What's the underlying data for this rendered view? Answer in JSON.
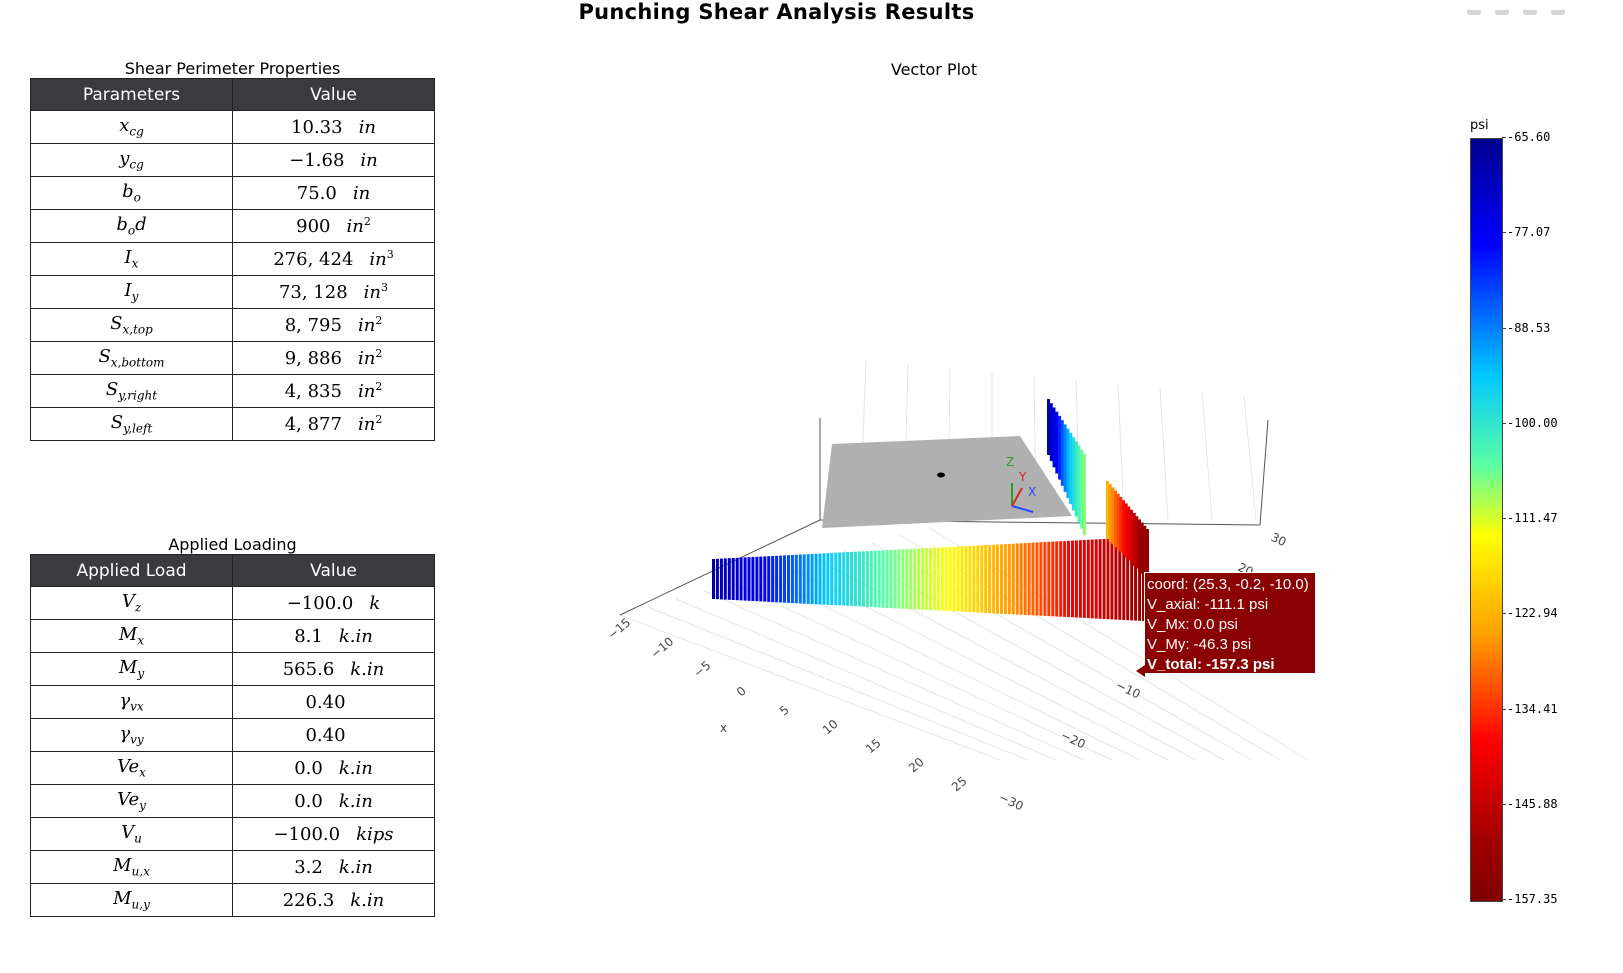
{
  "title": "Punching Shear Analysis Results",
  "shear_table": {
    "caption": "Shear Perimeter Properties",
    "headers": [
      "Parameters",
      "Value"
    ],
    "rows": [
      {
        "param": "x",
        "sub": "cg",
        "sup": "",
        "value": "10.33",
        "unit": "in",
        "unit_sup": ""
      },
      {
        "param": "y",
        "sub": "cg",
        "sup": "",
        "value": "−1.68",
        "unit": "in",
        "unit_sup": ""
      },
      {
        "param": "b",
        "sub": "o",
        "sup": "",
        "value": "75.0",
        "unit": "in",
        "unit_sup": ""
      },
      {
        "param": "b",
        "sub": "o",
        "sup": "d",
        "value": "900",
        "unit": "in",
        "unit_sup": "2"
      },
      {
        "param": "I",
        "sub": "x",
        "sup": "",
        "value": "276, 424",
        "unit": "in",
        "unit_sup": "3"
      },
      {
        "param": "I",
        "sub": "y",
        "sup": "",
        "value": "73, 128",
        "unit": "in",
        "unit_sup": "3"
      },
      {
        "param": "S",
        "sub": "x,top",
        "sup": "",
        "value": "8, 795",
        "unit": "in",
        "unit_sup": "2"
      },
      {
        "param": "S",
        "sub": "x,bottom",
        "sup": "",
        "value": "9, 886",
        "unit": "in",
        "unit_sup": "2"
      },
      {
        "param": "S",
        "sub": "y,right",
        "sup": "",
        "value": "4, 835",
        "unit": "in",
        "unit_sup": "2"
      },
      {
        "param": "S",
        "sub": "y,left",
        "sup": "",
        "value": "4, 877",
        "unit": "in",
        "unit_sup": "2"
      }
    ]
  },
  "load_table": {
    "caption": "Applied Loading",
    "headers": [
      "Applied Load",
      "Value"
    ],
    "rows": [
      {
        "param": "V",
        "sub": "z",
        "value": "−100.0",
        "unit": "k"
      },
      {
        "param": "M",
        "sub": "x",
        "value": "8.1",
        "unit": "k.in"
      },
      {
        "param": "M",
        "sub": "y",
        "value": "565.6",
        "unit": "k.in"
      },
      {
        "param": "γ",
        "sub": "vx",
        "value": "0.40",
        "unit": ""
      },
      {
        "param": "γ",
        "sub": "vy",
        "value": "0.40",
        "unit": ""
      },
      {
        "param": "Ve",
        "sub": "x",
        "value": "0.0",
        "unit": "k.in"
      },
      {
        "param": "Ve",
        "sub": "y",
        "value": "0.0",
        "unit": "k.in"
      },
      {
        "param": "V",
        "sub": "u",
        "value": "−100.0",
        "unit": "kips"
      },
      {
        "param": "M",
        "sub": "u,x",
        "value": "3.2",
        "unit": "k.in"
      },
      {
        "param": "M",
        "sub": "u,y",
        "value": "226.3",
        "unit": "k.in"
      }
    ]
  },
  "plot": {
    "title": "Vector Plot",
    "x_axis_label": "x",
    "x_ticks": [
      "−15",
      "−10",
      "−5",
      "0",
      "5",
      "10",
      "15",
      "20",
      "25"
    ],
    "y_ticks": [
      "30",
      "20",
      "−10",
      "−20",
      "−30"
    ],
    "triad": {
      "z": "Z",
      "y": "Y",
      "x": "X"
    },
    "colorbar": {
      "title": "psi",
      "ticks": [
        "-65.60",
        "-77.07",
        "-88.53",
        "-100.00",
        "-111.47",
        "-122.94",
        "-134.41",
        "-145.88",
        "-157.35"
      ],
      "colors": [
        "#00008f",
        "#0000ff",
        "#00c8ff",
        "#5dffa2",
        "#ffff00",
        "#ffa000",
        "#ff0000",
        "#a00000",
        "#800000"
      ]
    },
    "hover": {
      "coord": "coord: (25.3, -0.2, -10.0)",
      "v_axial": "V_axial: -111.1 psi",
      "v_mx": "V_Mx: 0.0 psi",
      "v_my": "V_My: -46.3 psi",
      "v_total": "V_total: -157.3 psi"
    }
  }
}
